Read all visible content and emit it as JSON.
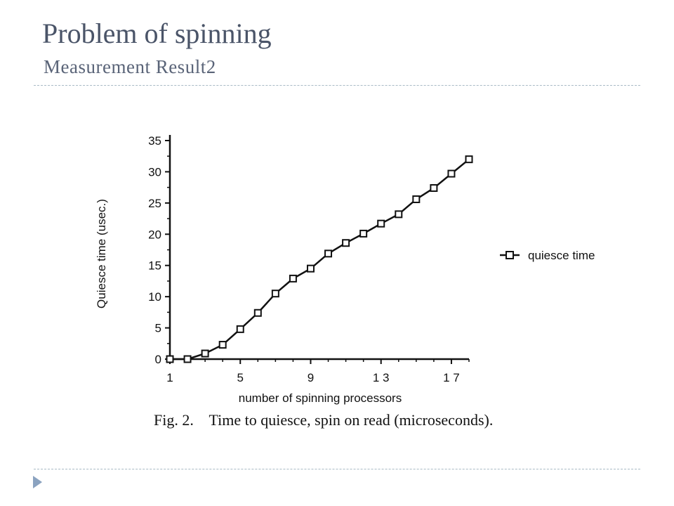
{
  "slide": {
    "title": "Problem of spinning",
    "subtitle": "Measurement Result2",
    "accent_color": "#8ba3c0"
  },
  "figure": {
    "caption": "Fig. 2.    Time to quiesce, spin on read (microseconds)."
  },
  "chart_data": {
    "type": "line",
    "title": "",
    "xlabel": "number of spinning processors",
    "ylabel": "Quiesce time (usec.)",
    "xlim": [
      1,
      18
    ],
    "ylim": [
      0,
      35
    ],
    "x_ticks": [
      1,
      5,
      9,
      13,
      17
    ],
    "x_tick_labels": [
      "1",
      "5",
      "9",
      "1 3",
      "1 7"
    ],
    "y_ticks": [
      0,
      5,
      10,
      15,
      20,
      25,
      30,
      35
    ],
    "grid": false,
    "legend_position": "right",
    "marker": "open-square",
    "series": [
      {
        "name": "quiesce time",
        "x": [
          1,
          2,
          3,
          4,
          5,
          6,
          7,
          8,
          9,
          10,
          11,
          12,
          13,
          14,
          15,
          16,
          17,
          18
        ],
        "y": [
          0,
          0,
          0.9,
          2.3,
          4.8,
          7.4,
          10.5,
          12.9,
          14.5,
          16.9,
          18.6,
          20.1,
          21.7,
          23.2,
          25.6,
          27.4,
          29.7,
          32.0
        ]
      }
    ]
  }
}
